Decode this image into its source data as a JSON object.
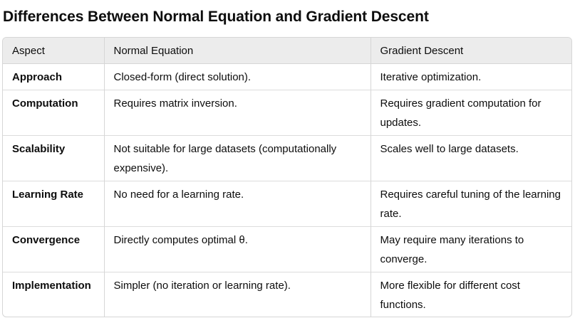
{
  "title": "Differences Between Normal Equation and Gradient Descent",
  "table": {
    "headers": [
      "Aspect",
      "Normal Equation",
      "Gradient Descent"
    ],
    "rows": [
      {
        "aspect": "Approach",
        "normal": "Closed-form (direct solution).",
        "gradient": "Iterative optimization."
      },
      {
        "aspect": "Computation",
        "normal": "Requires matrix inversion.",
        "gradient": "Requires gradient computation for updates."
      },
      {
        "aspect": "Scalability",
        "normal": "Not suitable for large datasets (computationally expensive).",
        "gradient": "Scales well to large datasets."
      },
      {
        "aspect": "Learning Rate",
        "normal": "No need for a learning rate.",
        "gradient": "Requires careful tuning of the learning rate."
      },
      {
        "aspect": "Convergence",
        "normal": "Directly computes optimal θ.",
        "gradient": "May require many iterations to converge."
      },
      {
        "aspect": "Implementation",
        "normal": "Simpler (no iteration or learning rate).",
        "gradient": "More flexible for different cost functions."
      }
    ]
  }
}
